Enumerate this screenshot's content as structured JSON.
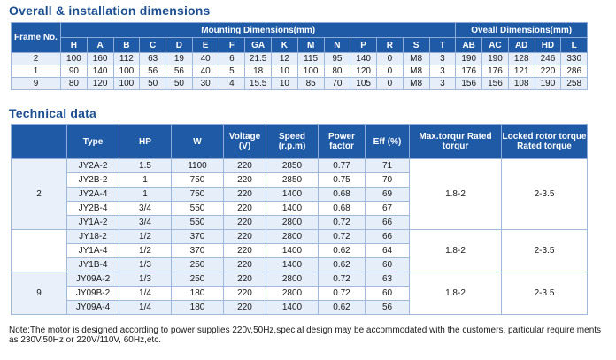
{
  "section1": {
    "title": "Overall & installation dimensions"
  },
  "dims": {
    "frame_header": "Frame No.",
    "mounting_header": "Mounting Dimensions(mm)",
    "overall_header": "Oveall Dimensions(mm)",
    "mounting_columns": [
      "H",
      "A",
      "B",
      "C",
      "D",
      "E",
      "F",
      "GA",
      "K",
      "M",
      "N",
      "P",
      "R",
      "S",
      "T"
    ],
    "overall_columns": [
      "AB",
      "AC",
      "AD",
      "HD",
      "L"
    ],
    "rows": [
      [
        "2",
        "100",
        "160",
        "112",
        "63",
        "19",
        "40",
        "6",
        "21.5",
        "12",
        "115",
        "95",
        "140",
        "0",
        "M8",
        "3",
        "190",
        "190",
        "128",
        "246",
        "330"
      ],
      [
        "1",
        "90",
        "140",
        "100",
        "56",
        "56",
        "40",
        "5",
        "18",
        "10",
        "100",
        "80",
        "120",
        "0",
        "M8",
        "3",
        "176",
        "176",
        "121",
        "220",
        "286"
      ],
      [
        "9",
        "80",
        "120",
        "100",
        "50",
        "50",
        "30",
        "4",
        "15.5",
        "10",
        "85",
        "70",
        "105",
        "0",
        "M8",
        "3",
        "156",
        "156",
        "108",
        "190",
        "258"
      ]
    ]
  },
  "section2": {
    "title": "Technical data"
  },
  "tech": {
    "headers": {
      "type": "Type",
      "hp": "HP",
      "w": "W",
      "voltage": "Voltage (V)",
      "speed": "Speed (r.p.m)",
      "pf": "Power factor",
      "eff": "Eff (%)",
      "max_torque": "Max.torqur Rated torqur",
      "locked_torque": "Locked rotor torque Rated torque"
    },
    "groups": [
      {
        "frame": "2",
        "max_torque": "1.8-2",
        "locked_torque": "2-3.5",
        "rows": [
          [
            "JY2A-2",
            "1.5",
            "1100",
            "220",
            "2850",
            "0.77",
            "71"
          ],
          [
            "JY2B-2",
            "1",
            "750",
            "220",
            "2850",
            "0.75",
            "70"
          ],
          [
            "JY2A-4",
            "1",
            "750",
            "220",
            "1400",
            "0.68",
            "69"
          ],
          [
            "JY2B-4",
            "3/4",
            "550",
            "220",
            "1400",
            "0.68",
            "67"
          ],
          [
            "JY1A-2",
            "3/4",
            "550",
            "220",
            "2800",
            "0.72",
            "66"
          ]
        ]
      },
      {
        "frame": "",
        "max_torque": "1.8-2",
        "locked_torque": "2-3.5",
        "rows": [
          [
            "JY18-2",
            "1/2",
            "370",
            "220",
            "2800",
            "0.72",
            "66"
          ],
          [
            "JY1A-4",
            "1/2",
            "370",
            "220",
            "1400",
            "0.62",
            "64"
          ],
          [
            "JY1B-4",
            "1/3",
            "250",
            "220",
            "1400",
            "0.62",
            "60"
          ]
        ]
      },
      {
        "frame": "9",
        "max_torque": "1.8-2",
        "locked_torque": "2-3.5",
        "rows": [
          [
            "JY09A-2",
            "1/3",
            "250",
            "220",
            "2800",
            "0.72",
            "63"
          ],
          [
            "JY09B-2",
            "1/4",
            "180",
            "220",
            "2800",
            "0.72",
            "60"
          ],
          [
            "JY09A-4",
            "1/4",
            "180",
            "220",
            "1400",
            "0.62",
            "56"
          ]
        ]
      }
    ]
  },
  "note": "Note:The motor is designed according to power supplies 220v,50Hz,special design may be accommodated with the customers, particular require ments as 230V,50Hz or 220V/110V, 60Hz,etc."
}
